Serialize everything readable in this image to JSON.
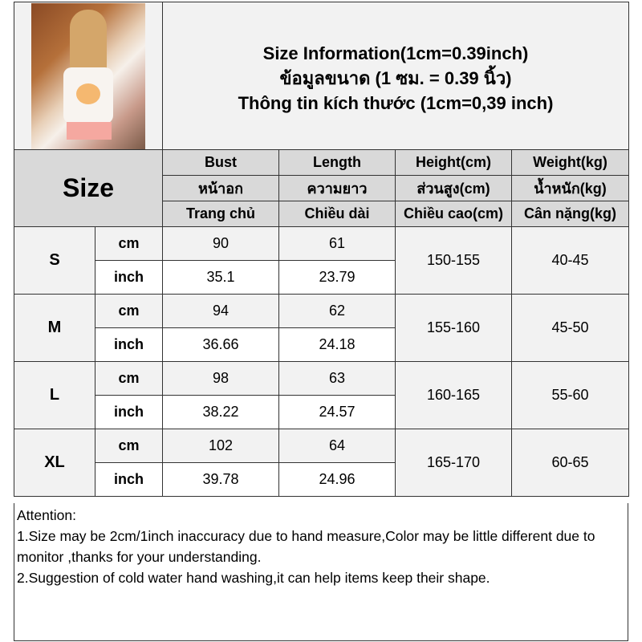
{
  "title_lines": [
    "Size Information(1cm=0.39inch)",
    "ข้อมูลขนาด (1 ซม. = 0.39 นิ้ว)",
    "Thông tin kích thước (1cm=0,39 inch)"
  ],
  "size_header": "Size",
  "columns": [
    {
      "en": "Bust",
      "th": "หน้าอก",
      "vi": "Trang chủ"
    },
    {
      "en": "Length",
      "th": "ความยาว",
      "vi": "Chiều dài"
    },
    {
      "en": "Height(cm)",
      "th": "ส่วนสูง(cm)",
      "vi": "Chiều cao(cm)"
    },
    {
      "en": "Weight(kg)",
      "th": "น้ำหนัก(kg)",
      "vi": "Cân nặng(kg)"
    }
  ],
  "units": {
    "cm": "cm",
    "inch": "inch"
  },
  "rows": [
    {
      "size": "S",
      "bust_cm": "90",
      "length_cm": "61",
      "bust_in": "35.1",
      "length_in": "23.79",
      "height": "150-155",
      "weight": "40-45"
    },
    {
      "size": "M",
      "bust_cm": "94",
      "length_cm": "62",
      "bust_in": "36.66",
      "length_in": "24.18",
      "height": "155-160",
      "weight": "45-50"
    },
    {
      "size": "L",
      "bust_cm": "98",
      "length_cm": "63",
      "bust_in": "38.22",
      "length_in": "24.57",
      "height": "160-165",
      "weight": "55-60"
    },
    {
      "size": "XL",
      "bust_cm": "102",
      "length_cm": "64",
      "bust_in": "39.78",
      "length_in": "24.96",
      "height": "165-170",
      "weight": "60-65"
    }
  ],
  "notes": [
    "Attention:",
    "1.Size may be 2cm/1inch inaccuracy due to hand measure,Color may be little different due to monitor ,thanks for your understanding.",
    "2.Suggestion of cold water hand washing,it can help items keep their shape."
  ]
}
